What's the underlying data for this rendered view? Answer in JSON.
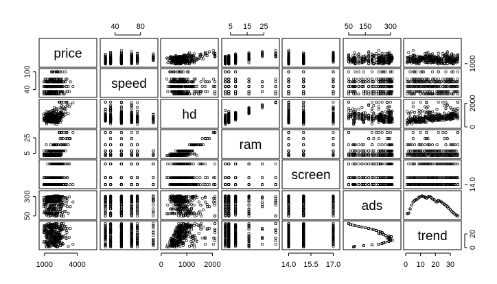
{
  "chart_data": {
    "type": "scatter",
    "title": "",
    "variables": [
      {
        "key": "price",
        "label": "price",
        "range": [
          700,
          5600
        ],
        "ticks": [
          1000,
          4000
        ]
      },
      {
        "key": "speed",
        "label": "speed",
        "range": [
          20,
          104
        ],
        "ticks": [
          40,
          80,
          100
        ]
      },
      {
        "key": "hd",
        "label": "hd",
        "range": [
          60,
          2150
        ],
        "ticks": [
          0,
          1000,
          2000
        ]
      },
      {
        "key": "ram",
        "label": "ram",
        "range": [
          1,
          33
        ],
        "ticks": [
          5,
          15,
          25
        ]
      },
      {
        "key": "screen",
        "label": "screen",
        "range": [
          13.7,
          17.3
        ],
        "ticks": [
          14.0,
          15.5,
          17.0
        ]
      },
      {
        "key": "ads",
        "label": "ads",
        "range": [
          30,
          350
        ],
        "ticks": [
          50,
          150,
          300
        ]
      },
      {
        "key": "trend",
        "label": "trend",
        "range": [
          0,
          36
        ],
        "ticks": [
          0,
          10,
          20,
          30
        ]
      }
    ],
    "axis_labels": {
      "top": [
        {
          "var": 1,
          "ticks": [
            "40",
            "80"
          ]
        },
        {
          "var": 3,
          "ticks": [
            "5",
            "15",
            "25"
          ]
        },
        {
          "var": 5,
          "ticks": [
            "50",
            "150",
            "300"
          ]
        }
      ],
      "bottom": [
        {
          "var": 0,
          "ticks": [
            "1000",
            "4000"
          ]
        },
        {
          "var": 2,
          "ticks": [
            "0",
            "1000",
            "2000"
          ]
        },
        {
          "var": 4,
          "ticks": [
            "14.0",
            "15.5",
            "17.0"
          ]
        },
        {
          "var": 6,
          "ticks": [
            "0",
            "10",
            "20",
            "30"
          ]
        }
      ],
      "left": [
        {
          "var": 1,
          "ticks": [
            "40",
            "100"
          ]
        },
        {
          "var": 3,
          "ticks": [
            "5",
            "25"
          ]
        },
        {
          "var": 5,
          "ticks": [
            "50",
            "300"
          ]
        }
      ],
      "right": [
        {
          "var": 0,
          "ticks": [
            "1000"
          ]
        },
        {
          "var": 2,
          "ticks": [
            "0",
            "2000"
          ]
        },
        {
          "var": 4,
          "ticks": [
            "14.0"
          ]
        },
        {
          "var": 6,
          "ticks": [
            "0",
            "20"
          ]
        }
      ]
    },
    "discrete_values": {
      "speed": [
        25,
        33,
        50,
        66,
        75,
        100
      ],
      "ram": [
        2,
        4,
        8,
        16,
        24,
        32
      ],
      "screen": [
        14,
        15,
        17
      ]
    },
    "trend_ads": [
      [
        1,
        80
      ],
      [
        2,
        85
      ],
      [
        3,
        140
      ],
      [
        4,
        190
      ],
      [
        5,
        230
      ],
      [
        6,
        250
      ],
      [
        7,
        260
      ],
      [
        8,
        270
      ],
      [
        9,
        290
      ],
      [
        10,
        300
      ],
      [
        11,
        310
      ],
      [
        12,
        300
      ],
      [
        13,
        290
      ],
      [
        14,
        280
      ],
      [
        15,
        295
      ],
      [
        16,
        305
      ],
      [
        17,
        290
      ],
      [
        18,
        270
      ],
      [
        19,
        260
      ],
      [
        20,
        240
      ],
      [
        21,
        230
      ],
      [
        22,
        250
      ],
      [
        23,
        240
      ],
      [
        24,
        230
      ],
      [
        25,
        215
      ],
      [
        26,
        200
      ],
      [
        27,
        190
      ],
      [
        28,
        170
      ],
      [
        29,
        150
      ],
      [
        30,
        130
      ],
      [
        31,
        110
      ],
      [
        32,
        90
      ],
      [
        33,
        75
      ],
      [
        34,
        60
      ],
      [
        35,
        50
      ]
    ],
    "grid": false,
    "legend": "none"
  }
}
